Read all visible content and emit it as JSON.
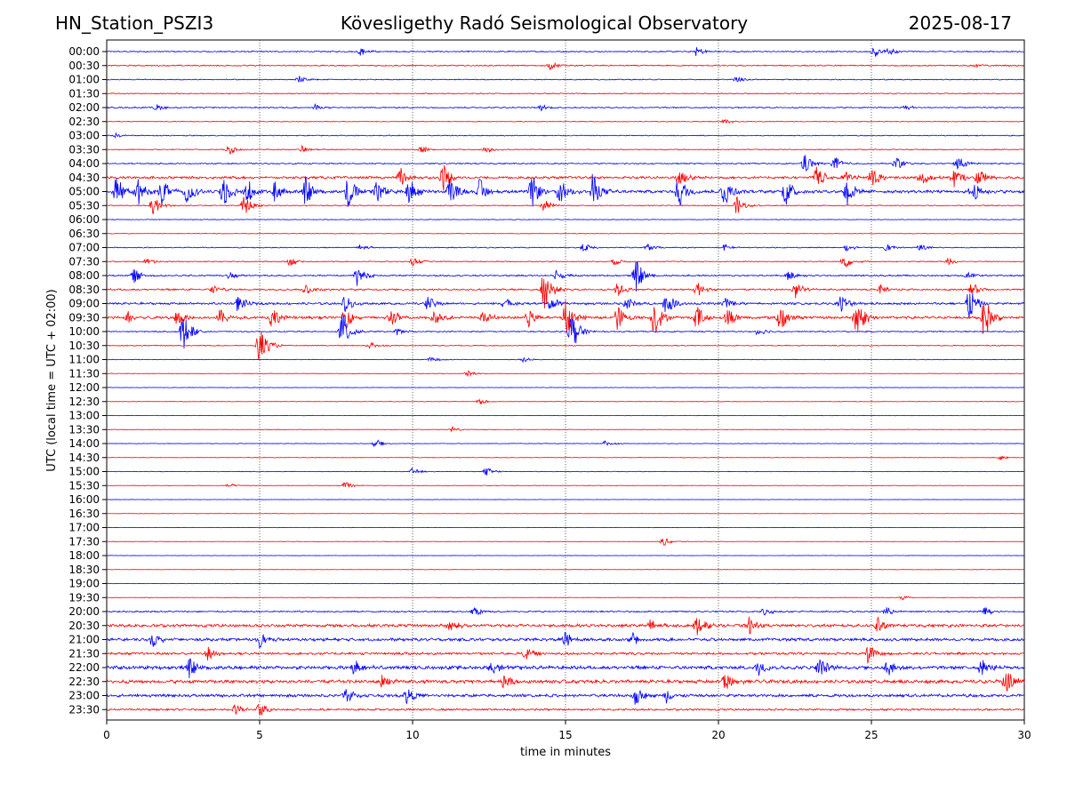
{
  "header": {
    "station": "HN_Station_PSZI3",
    "observatory": "Kövesligethy Radó Seismological Observatory",
    "date": "2025-08-17"
  },
  "chart_data": {
    "type": "line",
    "title": "Kövesligethy Radó Seismological Observatory",
    "xlabel": "time in minutes",
    "ylabel": "UTC (local time = UTC + 02:00)",
    "xlim": [
      0,
      30
    ],
    "x_ticks": [
      "0",
      "5",
      "10",
      "15",
      "20",
      "25",
      "30"
    ],
    "grid": "vertical dotted at 5-minute intervals",
    "colors": {
      "even_rows": "#0000ff",
      "odd_rows": "#ff0000"
    },
    "rows": [
      {
        "label": "00:00",
        "color": "blue",
        "noise": 0.25,
        "events": [
          [
            8.3,
            0.6
          ],
          [
            19.3,
            0.7
          ],
          [
            25.1,
            0.8
          ],
          [
            25.6,
            0.5
          ]
        ]
      },
      {
        "label": "00:30",
        "color": "red",
        "noise": 0.25,
        "events": [
          [
            14.5,
            0.5
          ],
          [
            28.4,
            0.4
          ]
        ]
      },
      {
        "label": "01:00",
        "color": "blue",
        "noise": 0.2,
        "events": [
          [
            6.3,
            0.5
          ],
          [
            20.6,
            0.5
          ]
        ]
      },
      {
        "label": "01:30",
        "color": "red",
        "noise": 0.2,
        "events": []
      },
      {
        "label": "02:00",
        "color": "blue",
        "noise": 0.25,
        "events": [
          [
            1.6,
            0.5
          ],
          [
            6.8,
            0.5
          ],
          [
            14.2,
            0.4
          ],
          [
            26.1,
            0.5
          ]
        ]
      },
      {
        "label": "02:30",
        "color": "red",
        "noise": 0.15,
        "events": [
          [
            20.2,
            0.4
          ]
        ]
      },
      {
        "label": "03:00",
        "color": "blue",
        "noise": 0.2,
        "events": [
          [
            0.3,
            0.3
          ]
        ]
      },
      {
        "label": "03:30",
        "color": "red",
        "noise": 0.2,
        "events": [
          [
            4.0,
            0.7
          ],
          [
            6.4,
            0.5
          ],
          [
            10.3,
            0.5
          ],
          [
            12.4,
            0.5
          ]
        ]
      },
      {
        "label": "04:00",
        "color": "blue",
        "noise": 0.25,
        "events": [
          [
            22.8,
            1.5
          ],
          [
            23.8,
            1.0
          ],
          [
            25.8,
            1.0
          ],
          [
            27.8,
            1.2
          ]
        ]
      },
      {
        "label": "04:30",
        "color": "red",
        "noise": 0.5,
        "events": [
          [
            9.6,
            1.5
          ],
          [
            11.0,
            2.0
          ],
          [
            18.7,
            1.8
          ],
          [
            23.2,
            1.6
          ],
          [
            24.1,
            1.2
          ],
          [
            25.0,
            1.8
          ],
          [
            26.6,
            1.4
          ],
          [
            27.7,
            1.5
          ],
          [
            28.5,
            1.4
          ]
        ]
      },
      {
        "label": "05:00",
        "color": "blue",
        "noise": 0.6,
        "events": [
          [
            0.3,
            2.0
          ],
          [
            1.0,
            2.0
          ],
          [
            1.8,
            1.8
          ],
          [
            2.6,
            1.8
          ],
          [
            3.8,
            2.5
          ],
          [
            4.6,
            1.8
          ],
          [
            5.5,
            1.6
          ],
          [
            6.5,
            2.0
          ],
          [
            7.9,
            2.5
          ],
          [
            8.8,
            2.0
          ],
          [
            9.9,
            2.0
          ],
          [
            11.2,
            2.0
          ],
          [
            12.2,
            1.8
          ],
          [
            13.9,
            2.4
          ],
          [
            14.8,
            1.8
          ],
          [
            15.9,
            2.5
          ],
          [
            18.7,
            2.5
          ],
          [
            20.2,
            2.2
          ],
          [
            22.2,
            2.0
          ],
          [
            24.2,
            2.0
          ],
          [
            28.3,
            1.6
          ]
        ]
      },
      {
        "label": "05:30",
        "color": "red",
        "noise": 0.2,
        "events": [
          [
            1.5,
            1.6
          ],
          [
            4.5,
            1.4
          ],
          [
            14.3,
            1.0
          ],
          [
            20.6,
            1.2
          ]
        ]
      },
      {
        "label": "06:00",
        "color": "blue",
        "noise": 0.15,
        "events": []
      },
      {
        "label": "06:30",
        "color": "red",
        "noise": 0.12,
        "events": []
      },
      {
        "label": "07:00",
        "color": "blue",
        "noise": 0.2,
        "events": [
          [
            8.3,
            0.5
          ],
          [
            15.6,
            0.6
          ],
          [
            17.7,
            0.5
          ],
          [
            20.2,
            0.5
          ],
          [
            24.2,
            0.5
          ],
          [
            25.5,
            0.5
          ],
          [
            26.6,
            0.5
          ]
        ]
      },
      {
        "label": "07:30",
        "color": "red",
        "noise": 0.2,
        "events": [
          [
            1.3,
            0.5
          ],
          [
            6.0,
            0.6
          ],
          [
            10.0,
            0.6
          ],
          [
            16.6,
            0.5
          ],
          [
            24.1,
            1.0
          ],
          [
            27.5,
            0.6
          ]
        ]
      },
      {
        "label": "08:00",
        "color": "blue",
        "noise": 0.3,
        "events": [
          [
            0.9,
            1.0
          ],
          [
            4.0,
            0.5
          ],
          [
            8.2,
            1.4
          ],
          [
            14.7,
            0.8
          ],
          [
            17.3,
            2.2
          ],
          [
            22.3,
            0.7
          ],
          [
            28.1,
            0.6
          ]
        ]
      },
      {
        "label": "08:30",
        "color": "red",
        "noise": 0.35,
        "events": [
          [
            3.5,
            0.7
          ],
          [
            6.5,
            0.8
          ],
          [
            14.3,
            2.8
          ],
          [
            16.7,
            1.0
          ],
          [
            19.3,
            1.2
          ],
          [
            22.5,
            1.4
          ],
          [
            25.3,
            0.6
          ],
          [
            28.3,
            1.0
          ]
        ]
      },
      {
        "label": "09:00",
        "color": "blue",
        "noise": 0.45,
        "events": [
          [
            4.3,
            1.2
          ],
          [
            7.8,
            1.2
          ],
          [
            10.5,
            1.0
          ],
          [
            13.0,
            0.9
          ],
          [
            14.5,
            1.0
          ],
          [
            17.0,
            1.0
          ],
          [
            18.3,
            1.6
          ],
          [
            20.2,
            1.2
          ],
          [
            24.0,
            1.4
          ],
          [
            28.2,
            2.2
          ]
        ]
      },
      {
        "label": "09:30",
        "color": "red",
        "noise": 0.55,
        "events": [
          [
            0.7,
            1.0
          ],
          [
            2.3,
            1.4
          ],
          [
            3.7,
            1.2
          ],
          [
            5.4,
            1.6
          ],
          [
            7.8,
            1.6
          ],
          [
            9.3,
            1.2
          ],
          [
            10.7,
            1.4
          ],
          [
            12.3,
            1.0
          ],
          [
            13.8,
            1.2
          ],
          [
            15.0,
            2.5
          ],
          [
            16.7,
            1.8
          ],
          [
            17.9,
            2.6
          ],
          [
            19.3,
            1.8
          ],
          [
            20.3,
            1.6
          ],
          [
            22.0,
            2.2
          ],
          [
            24.5,
            3.0
          ],
          [
            28.7,
            3.0
          ]
        ]
      },
      {
        "label": "10:00",
        "color": "blue",
        "noise": 0.25,
        "events": [
          [
            2.5,
            2.6
          ],
          [
            7.7,
            2.8
          ],
          [
            9.5,
            0.5
          ],
          [
            15.2,
            2.8
          ],
          [
            21.3,
            0.7
          ]
        ]
      },
      {
        "label": "10:30",
        "color": "red",
        "noise": 0.2,
        "events": [
          [
            5.0,
            2.6
          ],
          [
            8.6,
            0.5
          ]
        ]
      },
      {
        "label": "11:00",
        "color": "blue",
        "noise": 0.12,
        "events": [
          [
            10.6,
            0.4
          ],
          [
            13.6,
            0.4
          ]
        ]
      },
      {
        "label": "11:30",
        "color": "red",
        "noise": 0.1,
        "events": [
          [
            11.8,
            0.4
          ]
        ]
      },
      {
        "label": "12:00",
        "color": "blue",
        "noise": 0.1,
        "events": []
      },
      {
        "label": "12:30",
        "color": "red",
        "noise": 0.1,
        "events": [
          [
            12.2,
            0.4
          ]
        ]
      },
      {
        "label": "13:00",
        "color": "blue",
        "noise": 0.1,
        "events": []
      },
      {
        "label": "13:30",
        "color": "red",
        "noise": 0.1,
        "events": [
          [
            11.3,
            0.4
          ]
        ]
      },
      {
        "label": "14:00",
        "color": "blue",
        "noise": 0.12,
        "events": [
          [
            8.8,
            0.6
          ],
          [
            16.3,
            0.4
          ]
        ]
      },
      {
        "label": "14:30",
        "color": "red",
        "noise": 0.1,
        "events": [
          [
            29.2,
            0.3
          ]
        ]
      },
      {
        "label": "15:00",
        "color": "blue",
        "noise": 0.12,
        "events": [
          [
            10.0,
            0.5
          ],
          [
            12.4,
            0.6
          ]
        ]
      },
      {
        "label": "15:30",
        "color": "red",
        "noise": 0.1,
        "events": [
          [
            7.8,
            0.5
          ],
          [
            4.0,
            0.3
          ]
        ]
      },
      {
        "label": "16:00",
        "color": "blue",
        "noise": 0.08,
        "events": []
      },
      {
        "label": "16:30",
        "color": "red",
        "noise": 0.08,
        "events": []
      },
      {
        "label": "17:00",
        "color": "blue",
        "noise": 0.08,
        "events": []
      },
      {
        "label": "17:30",
        "color": "red",
        "noise": 0.08,
        "events": [
          [
            18.2,
            0.6
          ]
        ]
      },
      {
        "label": "18:00",
        "color": "blue",
        "noise": 0.08,
        "events": []
      },
      {
        "label": "18:30",
        "color": "red",
        "noise": 0.08,
        "events": []
      },
      {
        "label": "19:00",
        "color": "blue",
        "noise": 0.1,
        "events": []
      },
      {
        "label": "19:30",
        "color": "red",
        "noise": 0.1,
        "events": [
          [
            26.0,
            0.3
          ]
        ]
      },
      {
        "label": "20:00",
        "color": "blue",
        "noise": 0.3,
        "events": [
          [
            12.0,
            0.8
          ],
          [
            21.5,
            0.6
          ],
          [
            25.5,
            0.6
          ],
          [
            28.7,
            0.8
          ]
        ]
      },
      {
        "label": "20:30",
        "color": "red",
        "noise": 0.6,
        "events": [
          [
            11.2,
            1.0
          ],
          [
            17.8,
            1.0
          ],
          [
            19.3,
            1.4
          ],
          [
            21.0,
            1.2
          ],
          [
            25.2,
            1.2
          ]
        ]
      },
      {
        "label": "21:00",
        "color": "blue",
        "noise": 0.6,
        "events": [
          [
            1.5,
            1.0
          ],
          [
            5.0,
            1.0
          ],
          [
            15.0,
            1.0
          ],
          [
            17.2,
            1.0
          ]
        ]
      },
      {
        "label": "21:30",
        "color": "red",
        "noise": 0.5,
        "events": [
          [
            3.3,
            1.0
          ],
          [
            13.7,
            1.0
          ],
          [
            24.9,
            1.4
          ]
        ]
      },
      {
        "label": "22:00",
        "color": "blue",
        "noise": 0.7,
        "events": [
          [
            2.7,
            1.4
          ],
          [
            8.1,
            1.2
          ],
          [
            12.6,
            1.2
          ],
          [
            21.3,
            1.2
          ],
          [
            23.3,
            1.4
          ],
          [
            25.5,
            1.2
          ],
          [
            28.6,
            1.2
          ]
        ]
      },
      {
        "label": "22:30",
        "color": "red",
        "noise": 0.7,
        "events": [
          [
            9.0,
            1.0
          ],
          [
            13.0,
            1.0
          ],
          [
            20.2,
            1.4
          ],
          [
            29.4,
            2.0
          ]
        ]
      },
      {
        "label": "23:00",
        "color": "blue",
        "noise": 0.6,
        "events": [
          [
            7.8,
            1.4
          ],
          [
            9.8,
            1.2
          ],
          [
            17.3,
            1.4
          ],
          [
            18.3,
            1.0
          ]
        ]
      },
      {
        "label": "23:30",
        "color": "red",
        "noise": 0.4,
        "events": [
          [
            5.0,
            1.0
          ],
          [
            4.2,
            0.8
          ]
        ]
      }
    ]
  }
}
